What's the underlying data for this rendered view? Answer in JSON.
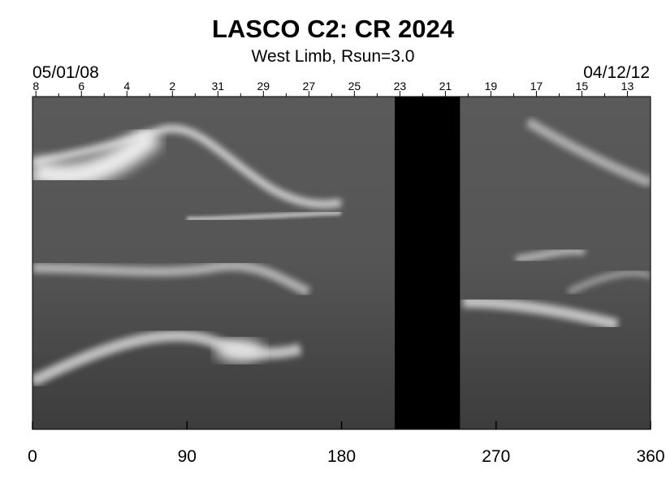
{
  "chart_data": {
    "type": "heatmap",
    "title": "LASCO C2: CR 2024",
    "subtitle": "West Limb, Rsun=3.0",
    "start_date": "05/01/08",
    "end_date": "04/12/12",
    "x": {
      "min": 0,
      "max": 360,
      "ticks": [
        0,
        90,
        180,
        270,
        360
      ]
    },
    "day_ticks": [
      {
        "label": "8",
        "x": 2
      },
      {
        "label": "6",
        "x": 28.5
      },
      {
        "label": "4",
        "x": 55
      },
      {
        "label": "2",
        "x": 81.5
      },
      {
        "label": "31",
        "x": 108
      },
      {
        "label": "29",
        "x": 134.5
      },
      {
        "label": "27",
        "x": 161
      },
      {
        "label": "25",
        "x": 187.5
      },
      {
        "label": "23",
        "x": 214
      },
      {
        "label": "21",
        "x": 240.5
      },
      {
        "label": "19",
        "x": 267
      },
      {
        "label": "17",
        "x": 293.5
      },
      {
        "label": "15",
        "x": 320
      },
      {
        "label": "13",
        "x": 346.5
      }
    ],
    "data_gap": {
      "x_start": 211,
      "x_end": 249
    },
    "colormap": "grayscale"
  }
}
